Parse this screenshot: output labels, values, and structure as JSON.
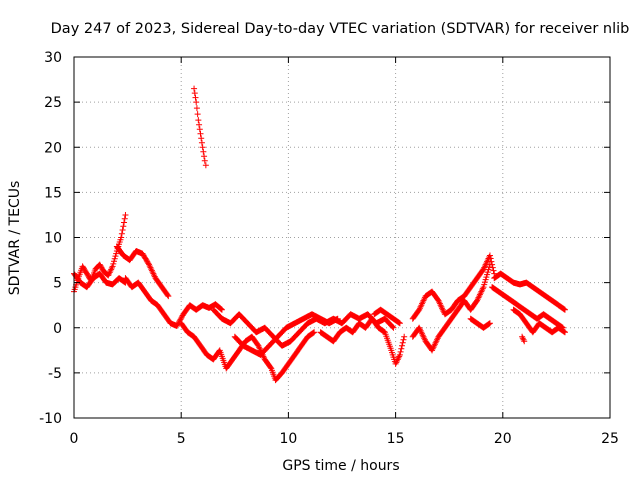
{
  "chart_data": {
    "type": "scatter",
    "title": "Day 247 of 2023, Sidereal Day-to-day VTEC variation (SDTVAR) for receiver nlib",
    "xlabel": "GPS time / hours",
    "ylabel": "SDTVAR / TECUs",
    "xlim": [
      0,
      25
    ],
    "ylim": [
      -10,
      30
    ],
    "xticks": [
      0,
      5,
      10,
      15,
      20,
      25
    ],
    "yticks": [
      -10,
      -5,
      0,
      5,
      10,
      15,
      20,
      25,
      30
    ],
    "xtick_labels": [
      "0",
      "5",
      "10",
      "15",
      "20",
      "25"
    ],
    "ytick_labels": [
      "-10",
      "-5",
      "0",
      "5",
      "10",
      "15",
      "20",
      "25",
      "30"
    ],
    "grid": true,
    "marker": "+",
    "color": "#ff0000",
    "series": [
      {
        "name": "SDTVAR",
        "tracks": [
          [
            [
              0.0,
              4.0
            ],
            [
              0.2,
              5.5
            ],
            [
              0.4,
              6.8
            ],
            [
              0.6,
              6.0
            ],
            [
              0.8,
              5.2
            ],
            [
              1.0,
              6.5
            ],
            [
              1.2,
              7.0
            ],
            [
              1.4,
              6.2
            ],
            [
              1.6,
              5.8
            ],
            [
              1.8,
              6.8
            ],
            [
              2.0,
              8.5
            ],
            [
              2.2,
              10.0
            ],
            [
              2.4,
              12.5
            ]
          ],
          [
            [
              0.0,
              6.0
            ],
            [
              0.3,
              5.0
            ],
            [
              0.6,
              4.5
            ],
            [
              0.9,
              5.5
            ],
            [
              1.2,
              6.0
            ],
            [
              1.5,
              5.0
            ],
            [
              1.8,
              4.8
            ],
            [
              2.1,
              5.5
            ],
            [
              2.4,
              5.0
            ]
          ],
          [
            [
              2.0,
              9.0
            ],
            [
              2.3,
              8.0
            ],
            [
              2.6,
              7.5
            ],
            [
              2.9,
              8.5
            ],
            [
              3.2,
              8.2
            ],
            [
              3.5,
              7.0
            ],
            [
              3.8,
              5.5
            ],
            [
              4.1,
              4.5
            ],
            [
              4.4,
              3.5
            ]
          ],
          [
            [
              2.4,
              5.5
            ],
            [
              2.7,
              4.5
            ],
            [
              3.0,
              5.0
            ],
            [
              3.3,
              4.0
            ],
            [
              3.6,
              3.0
            ],
            [
              3.9,
              2.5
            ],
            [
              4.2,
              1.5
            ],
            [
              4.5,
              0.5
            ],
            [
              4.8,
              0.2
            ],
            [
              5.1,
              1.5
            ],
            [
              5.4,
              2.5
            ],
            [
              5.7,
              2.0
            ],
            [
              6.0,
              2.5
            ],
            [
              6.3,
              2.2
            ],
            [
              6.6,
              2.6
            ],
            [
              6.9,
              2.0
            ]
          ],
          [
            [
              5.6,
              26.5
            ],
            [
              5.7,
              25.0
            ],
            [
              5.8,
              23.0
            ],
            [
              5.9,
              21.5
            ],
            [
              6.0,
              20.0
            ],
            [
              6.1,
              18.5
            ],
            [
              6.15,
              18.0
            ]
          ],
          [
            [
              5.0,
              0.5
            ],
            [
              5.3,
              -0.5
            ],
            [
              5.6,
              -1.0
            ],
            [
              5.9,
              -2.0
            ],
            [
              6.2,
              -3.0
            ],
            [
              6.5,
              -3.5
            ],
            [
              6.8,
              -2.5
            ],
            [
              7.1,
              -4.5
            ],
            [
              7.4,
              -3.5
            ],
            [
              7.7,
              -2.5
            ],
            [
              8.0,
              -1.5
            ],
            [
              8.3,
              -1.0
            ],
            [
              8.6,
              -2.0
            ],
            [
              8.9,
              -3.5
            ],
            [
              9.2,
              -4.5
            ],
            [
              9.4,
              -5.8
            ],
            [
              9.7,
              -5.0
            ],
            [
              10.0,
              -4.0
            ],
            [
              10.3,
              -3.0
            ],
            [
              10.6,
              -2.0
            ],
            [
              10.9,
              -1.0
            ],
            [
              11.2,
              -0.5
            ]
          ],
          [
            [
              6.5,
              2.0
            ],
            [
              6.9,
              1.0
            ],
            [
              7.3,
              0.5
            ],
            [
              7.7,
              1.5
            ],
            [
              8.1,
              0.5
            ],
            [
              8.5,
              -0.5
            ],
            [
              8.9,
              0.0
            ],
            [
              9.3,
              -1.0
            ],
            [
              9.7,
              -2.0
            ],
            [
              10.1,
              -1.5
            ],
            [
              10.5,
              -0.5
            ],
            [
              10.9,
              0.5
            ],
            [
              11.3,
              1.0
            ],
            [
              11.7,
              0.5
            ],
            [
              12.1,
              1.0
            ],
            [
              12.5,
              0.5
            ],
            [
              12.9,
              1.5
            ],
            [
              13.3,
              1.0
            ],
            [
              13.7,
              1.5
            ],
            [
              14.1,
              0.5
            ],
            [
              14.5,
              1.0
            ],
            [
              14.9,
              0.0
            ]
          ],
          [
            [
              7.5,
              -1.0
            ],
            [
              7.9,
              -2.0
            ],
            [
              8.3,
              -2.5
            ],
            [
              8.7,
              -3.0
            ],
            [
              9.1,
              -2.0
            ],
            [
              9.5,
              -1.0
            ],
            [
              9.9,
              0.0
            ],
            [
              10.3,
              0.5
            ],
            [
              10.7,
              1.0
            ],
            [
              11.1,
              1.5
            ],
            [
              11.5,
              1.0
            ],
            [
              11.9,
              0.5
            ],
            [
              12.3,
              1.0
            ]
          ],
          [
            [
              11.5,
              -0.5
            ],
            [
              11.8,
              -1.0
            ],
            [
              12.1,
              -1.5
            ],
            [
              12.4,
              -0.5
            ],
            [
              12.7,
              0.0
            ],
            [
              13.0,
              -0.5
            ],
            [
              13.3,
              0.5
            ],
            [
              13.6,
              0.0
            ],
            [
              13.9,
              1.0
            ],
            [
              14.2,
              0.0
            ],
            [
              14.5,
              -0.5
            ],
            [
              14.8,
              -2.5
            ],
            [
              15.0,
              -4.0
            ],
            [
              15.2,
              -3.0
            ],
            [
              15.4,
              -1.0
            ]
          ],
          [
            [
              14.0,
              1.5
            ],
            [
              14.3,
              2.0
            ],
            [
              14.6,
              1.5
            ],
            [
              14.9,
              1.0
            ],
            [
              15.2,
              0.5
            ]
          ],
          [
            [
              15.8,
              1.0
            ],
            [
              16.1,
              2.0
            ],
            [
              16.4,
              3.5
            ],
            [
              16.7,
              4.0
            ],
            [
              17.0,
              3.0
            ],
            [
              17.3,
              1.5
            ],
            [
              17.6,
              2.0
            ],
            [
              17.9,
              3.0
            ],
            [
              18.2,
              3.5
            ],
            [
              18.5,
              4.5
            ],
            [
              18.8,
              5.5
            ],
            [
              19.1,
              6.5
            ],
            [
              19.4,
              8.0
            ],
            [
              19.6,
              6.0
            ]
          ],
          [
            [
              15.8,
              -1.0
            ],
            [
              16.1,
              0.0
            ],
            [
              16.4,
              -1.5
            ],
            [
              16.7,
              -2.5
            ],
            [
              17.0,
              -1.0
            ],
            [
              17.3,
              0.0
            ],
            [
              17.6,
              1.0
            ],
            [
              17.9,
              2.0
            ],
            [
              18.2,
              3.0
            ],
            [
              18.5,
              2.0
            ],
            [
              18.8,
              3.0
            ],
            [
              19.1,
              4.5
            ],
            [
              19.4,
              7.0
            ]
          ],
          [
            [
              18.5,
              1.0
            ],
            [
              18.8,
              0.5
            ],
            [
              19.1,
              0.0
            ],
            [
              19.4,
              0.5
            ]
          ],
          [
            [
              19.6,
              5.5
            ],
            [
              19.9,
              6.0
            ],
            [
              20.2,
              5.5
            ],
            [
              20.5,
              5.0
            ],
            [
              20.8,
              4.8
            ],
            [
              21.1,
              5.0
            ],
            [
              21.4,
              4.5
            ],
            [
              21.7,
              4.0
            ],
            [
              22.0,
              3.5
            ],
            [
              22.3,
              3.0
            ],
            [
              22.6,
              2.5
            ],
            [
              22.9,
              2.0
            ]
          ],
          [
            [
              19.5,
              4.5
            ],
            [
              19.8,
              4.0
            ],
            [
              20.1,
              3.5
            ],
            [
              20.4,
              3.0
            ],
            [
              20.7,
              2.5
            ],
            [
              21.0,
              2.0
            ],
            [
              21.3,
              1.5
            ],
            [
              21.6,
              1.0
            ],
            [
              21.9,
              1.5
            ],
            [
              22.2,
              1.0
            ],
            [
              22.5,
              0.5
            ],
            [
              22.8,
              0.0
            ]
          ],
          [
            [
              20.5,
              2.0
            ],
            [
              20.8,
              1.5
            ],
            [
              21.1,
              0.5
            ],
            [
              21.4,
              -0.5
            ],
            [
              21.7,
              0.5
            ],
            [
              22.0,
              0.0
            ],
            [
              22.3,
              -0.5
            ],
            [
              22.6,
              0.0
            ],
            [
              22.9,
              -0.5
            ]
          ],
          [
            [
              20.9,
              -1.0
            ],
            [
              21.0,
              -1.5
            ]
          ]
        ]
      }
    ]
  }
}
